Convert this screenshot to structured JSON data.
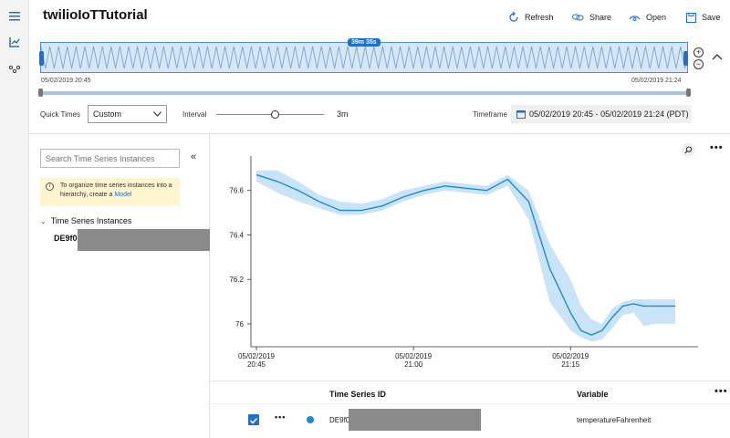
{
  "app": {
    "title": "twilioIoTTutorial"
  },
  "toolbar": {
    "refresh_label": "Refresh",
    "share_label": "Share",
    "open_label": "Open",
    "save_label": "Save"
  },
  "brush": {
    "duration": "39m 35s",
    "start_time": "05/02/2019 20:45",
    "end_time": "05/02/2019 21:24"
  },
  "controls": {
    "quick_times_label": "Quick Times",
    "quick_times_value": "Custom",
    "interval_label": "Interval",
    "interval_value": "3m",
    "interval_fraction": 0.55,
    "timeframe_label": "Timeframe",
    "timeframe_value": "05/02/2019 20:45 - 05/02/2019 21:24 (PDT)"
  },
  "left_panel": {
    "search_placeholder": "Search Time Series Instances",
    "info_text": "To organize time series instances into a hierarchy, create a",
    "info_link": "Model",
    "tree_header": "Time Series Instances",
    "instance_label": "DE9f0"
  },
  "chart_data": {
    "type": "line",
    "x_ticks": [
      {
        "time": "20:45",
        "line1": "05/02/2019",
        "line2": "20:45"
      },
      {
        "time": "21:00",
        "line1": "05/02/2019",
        "line2": "21:00"
      },
      {
        "time": "21:15",
        "line1": "05/02/2019",
        "line2": "21:15"
      }
    ],
    "y_ticks": [
      76,
      76.2,
      76.4,
      76.6
    ],
    "ylim": [
      75.93,
      76.73
    ],
    "xlim_minutes": [
      0,
      40
    ],
    "series": [
      {
        "color": "#1a8bd6",
        "band_color": "#c9e4f8",
        "points_minutes": [
          0,
          2,
          4,
          6,
          8,
          10,
          12,
          14,
          16,
          18,
          20,
          22,
          24,
          26,
          28,
          30,
          31,
          32,
          33,
          34,
          35,
          36,
          37,
          38,
          40
        ],
        "mean": [
          76.67,
          76.64,
          76.6,
          76.55,
          76.51,
          76.51,
          76.53,
          76.57,
          76.6,
          76.62,
          76.61,
          76.6,
          76.65,
          76.55,
          76.25,
          76.05,
          75.97,
          75.95,
          75.97,
          76.03,
          76.08,
          76.09,
          76.08,
          76.08,
          76.08
        ],
        "upper": [
          76.69,
          76.69,
          76.64,
          76.58,
          76.55,
          76.54,
          76.56,
          76.6,
          76.62,
          76.64,
          76.63,
          76.62,
          76.67,
          76.6,
          76.36,
          76.2,
          76.08,
          76.02,
          76.0,
          76.07,
          76.1,
          76.11,
          76.11,
          76.11,
          76.11
        ],
        "lower": [
          76.64,
          76.59,
          76.55,
          76.52,
          76.49,
          76.49,
          76.51,
          76.55,
          76.58,
          76.6,
          76.59,
          76.58,
          76.62,
          76.47,
          76.1,
          75.97,
          75.94,
          75.92,
          75.93,
          75.98,
          76.04,
          76.05,
          75.99,
          76.0,
          76.0
        ]
      }
    ],
    "grid": false
  },
  "table": {
    "headers": {
      "id": "Time Series ID",
      "variable": "Variable"
    },
    "rows": [
      {
        "id": "DE9f0",
        "variable": "temperatureFahrenheit",
        "checked": true,
        "color": "#1a8bd6"
      }
    ]
  },
  "icons": {
    "hamburger": "menu-icon",
    "chart_nav": "chart-icon",
    "model_nav": "hierarchy-icon"
  }
}
